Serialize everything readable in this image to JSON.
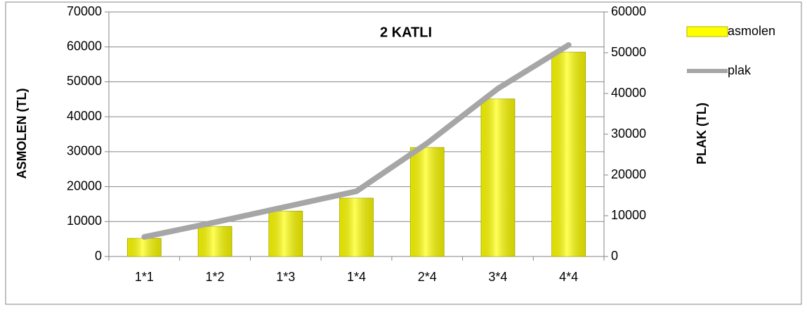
{
  "chart_data": {
    "type": "bar",
    "title": "2 KATLI",
    "ylabel": "ASMOLEN (TL)",
    "y2label": "PLAK (TL)",
    "categories": [
      "1*1",
      "1*2",
      "1*3",
      "1*4",
      "2*4",
      "3*4",
      "4*4"
    ],
    "series": [
      {
        "name": "asmolen",
        "type": "bar",
        "color": "#ffff00",
        "values": [
          5200,
          8600,
          13000,
          16700,
          31200,
          45100,
          58500
        ]
      },
      {
        "name": "plak",
        "type": "line",
        "axis": "y2",
        "color": "#a6a6a6",
        "values": [
          4800,
          8400,
          12200,
          16000,
          27800,
          41200,
          51900
        ]
      }
    ],
    "ylim": [
      0,
      70000
    ],
    "yticks": [
      0,
      10000,
      20000,
      30000,
      40000,
      50000,
      60000,
      70000
    ],
    "y2lim": [
      0,
      60000
    ],
    "y2ticks": [
      0,
      10000,
      20000,
      30000,
      40000,
      50000,
      60000
    ],
    "grid": true,
    "legend": "right"
  }
}
